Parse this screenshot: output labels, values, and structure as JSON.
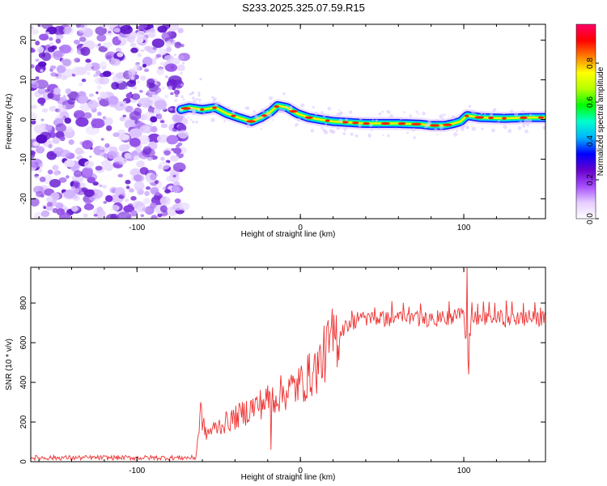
{
  "figure_title": "S233.2025.325.07.59.R15",
  "chart_data": [
    {
      "type": "heatmap",
      "title": "S233.2025.325.07.59.R15",
      "xlabel": "Height of straight line (km)",
      "ylabel": "Frequency (Hz)",
      "xlim": [
        -165,
        150
      ],
      "ylim": [
        -25,
        24
      ],
      "xticks": [
        -100,
        0,
        100
      ],
      "yticks": [
        -20,
        -10,
        0,
        10,
        20
      ],
      "noise_region_x": [
        -165,
        -73
      ],
      "ridge": {
        "x": [
          -73,
          -68,
          -60,
          -52,
          -45,
          -38,
          -30,
          -24,
          -18,
          -14,
          -8,
          -2,
          5,
          12,
          20,
          40,
          60,
          74,
          80,
          88,
          94,
          98,
          102,
          110,
          125,
          140,
          150
        ],
        "freq": [
          2.5,
          3.0,
          2.5,
          3.0,
          1.5,
          0.5,
          -0.5,
          0.5,
          2.0,
          3.5,
          3.0,
          1.5,
          0.5,
          0.0,
          -0.5,
          -1.0,
          -1.0,
          -1.2,
          -1.5,
          -1.5,
          -1.0,
          -0.5,
          1.0,
          0.5,
          0.3,
          0.5,
          0.5
        ]
      },
      "colorbar": {
        "label": "Normalized spectral amplitude",
        "range": [
          0.0,
          1.0
        ],
        "ticks": [
          0.0,
          0.2,
          0.4,
          0.6,
          0.8
        ],
        "colors": [
          "#ffffff",
          "#e6ccff",
          "#a64dff",
          "#6600cc",
          "#0000ff",
          "#00b3ff",
          "#00ffcc",
          "#00ff00",
          "#b3ff00",
          "#ffff00",
          "#ff8000",
          "#ff0000",
          "#ff0066"
        ]
      }
    },
    {
      "type": "line",
      "xlabel": "Height of straight line (km)",
      "ylabel": "SNR (10 * v/v)",
      "xlim": [
        -165,
        150
      ],
      "ylim": [
        0,
        980
      ],
      "xticks": [
        -100,
        0,
        100
      ],
      "yticks": [
        0,
        200,
        400,
        600,
        800
      ],
      "line_color": "#ee3333",
      "trend": {
        "x": [
          -165,
          -64,
          -61,
          -58,
          -50,
          -40,
          -30,
          -20,
          -10,
          0,
          10,
          20,
          30,
          40,
          60,
          80,
          95,
          100,
          102,
          105,
          120,
          150
        ],
        "y": [
          20,
          20,
          250,
          140,
          180,
          220,
          270,
          310,
          350,
          390,
          470,
          620,
          700,
          720,
          720,
          720,
          720,
          780,
          500,
          720,
          720,
          720
        ]
      },
      "spikes": [
        {
          "x": -61,
          "y": 300
        },
        {
          "x": -18,
          "y": 60
        },
        {
          "x": 102,
          "y": 980
        },
        {
          "x": 103,
          "y": 440
        }
      ]
    }
  ]
}
